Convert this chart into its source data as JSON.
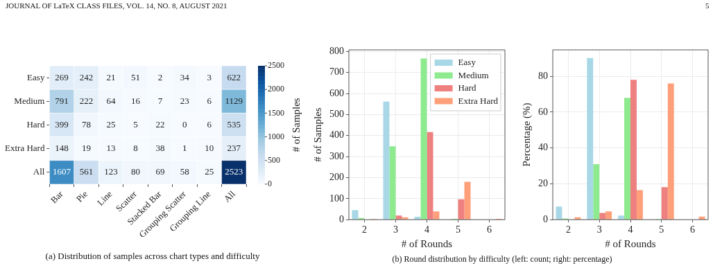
{
  "chart_data": [
    {
      "type": "heatmap",
      "categories": [
        "Bar",
        "Pie",
        "Line",
        "Scatter",
        "Stacked Bar",
        "Grouping Scatter",
        "Grouping Line",
        "All"
      ],
      "y_categories": [
        "Easy",
        "Medium",
        "Hard",
        "Extra Hard",
        "All"
      ],
      "cells": [
        [
          269,
          242,
          21,
          51,
          2,
          34,
          3,
          622
        ],
        [
          791,
          222,
          64,
          16,
          7,
          23,
          6,
          1129
        ],
        [
          399,
          78,
          25,
          5,
          22,
          0,
          6,
          535
        ],
        [
          148,
          19,
          13,
          8,
          38,
          1,
          10,
          237
        ],
        [
          1607,
          561,
          123,
          80,
          69,
          58,
          25,
          2523
        ]
      ],
      "data_labels": true,
      "clim": [
        0,
        2500
      ],
      "cticks": [
        0,
        500,
        1000,
        1500,
        2000,
        2500
      ],
      "clabel": "# of Samples",
      "annotations": [
        "JOURNAL OF LaTeX CLASS FILES, VOL. 14, NO. 8, AUGUST 2021",
        "(a) Distribution of samples across chart types and difficulty"
      ]
    },
    {
      "type": "bar",
      "categories": [
        "2",
        "3",
        "4",
        "5",
        "6"
      ],
      "xlabel": "# of Rounds",
      "ylabel": "# of Samples",
      "series": [
        {
          "name": "Easy",
          "color": "#a8d8e6",
          "values": [
            45,
            562,
            14,
            0,
            0
          ]
        },
        {
          "name": "Medium",
          "color": "#8eea8e",
          "values": [
            8,
            349,
            767,
            4,
            0
          ]
        },
        {
          "name": "Hard",
          "color": "#ee8080",
          "values": [
            0,
            20,
            417,
            97,
            null
          ]
        },
        {
          "name": "Extra Hard",
          "color": "#ffa07a",
          "values": [
            3,
            11,
            39,
            180,
            4
          ]
        }
      ],
      "ylim": [
        0,
        808
      ],
      "yticks": [
        0,
        100,
        200,
        300,
        400,
        500,
        600,
        700,
        800
      ],
      "grid": true,
      "legend": "top right",
      "annotations": [
        "(b) Round distribution by difficulty (left: count; right: percentage)"
      ]
    },
    {
      "type": "bar",
      "categories": [
        "2",
        "3",
        "4",
        "5",
        "6"
      ],
      "xlabel": "# of Rounds",
      "ylabel": "Percentage (%)",
      "series": [
        {
          "color": "#a8d8e6",
          "values": [
            7.3,
            90.2,
            2.3,
            0,
            0
          ]
        },
        {
          "color": "#8eea8e",
          "values": [
            0.7,
            31,
            68,
            0.4,
            0
          ]
        },
        {
          "color": "#ee8080",
          "values": [
            0,
            3.7,
            78,
            18.1,
            null
          ]
        },
        {
          "color": "#ffa07a",
          "values": [
            1.3,
            4.6,
            16.5,
            76,
            1.7
          ]
        }
      ],
      "ylim": [
        0,
        94.7
      ],
      "yticks": [
        0,
        20,
        40,
        60,
        80
      ],
      "grid": true,
      "annotations": [
        "5"
      ]
    }
  ]
}
